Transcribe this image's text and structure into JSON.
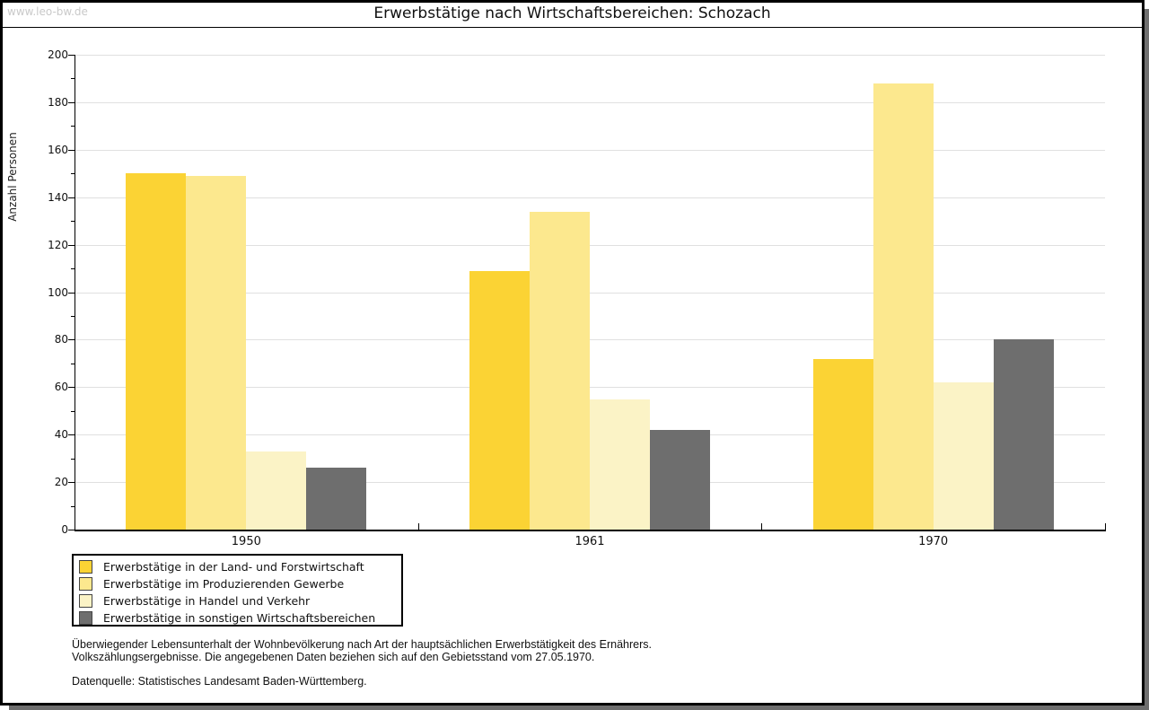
{
  "watermark": "www.leo-bw.de",
  "title": "Erwerbstätige nach Wirtschaftsbereichen: Schozach",
  "footer": {
    "line1": "Überwiegender Lebensunterhalt der Wohnbevölkerung nach Art der hauptsächlichen Erwerbstätigkeit des Ernährers.",
    "line2": "Volkszählungsergebnisse. Die angegebenen Daten beziehen sich auf den Gebietsstand vom 27.05.1970.",
    "source": "Datenquelle: Statistisches Landesamt Baden-Württemberg."
  },
  "chart_data": {
    "type": "bar",
    "title": "Erwerbstätige nach Wirtschaftsbereichen: Schozach",
    "xlabel": "",
    "ylabel": "Anzahl Personen",
    "categories": [
      "1950",
      "1961",
      "1970"
    ],
    "series": [
      {
        "name": "Erwerbstätige in der Land- und Forstwirtschaft",
        "color": "#FBD334",
        "values": [
          150,
          109,
          72
        ]
      },
      {
        "name": "Erwerbstätige im Produzierenden Gewerbe",
        "color": "#FCE88E",
        "values": [
          149,
          134,
          188
        ]
      },
      {
        "name": "Erwerbstätige in Handel und Verkehr",
        "color": "#FBF3C6",
        "values": [
          33,
          55,
          62
        ]
      },
      {
        "name": "Erwerbstätige in sonstigen Wirtschaftsbereichen",
        "color": "#6E6E6E",
        "values": [
          26,
          42,
          80
        ]
      }
    ],
    "ylim": [
      0,
      200
    ],
    "ytick_major": 20,
    "ytick_minor": 10,
    "grid": "horizontal-major",
    "legend_position": "bottom-left",
    "colors": {
      "gridline": "#E0E0E0",
      "axis": "#000000",
      "watermark": "#C9C9C9",
      "shadow": "#6E6E6E"
    }
  }
}
